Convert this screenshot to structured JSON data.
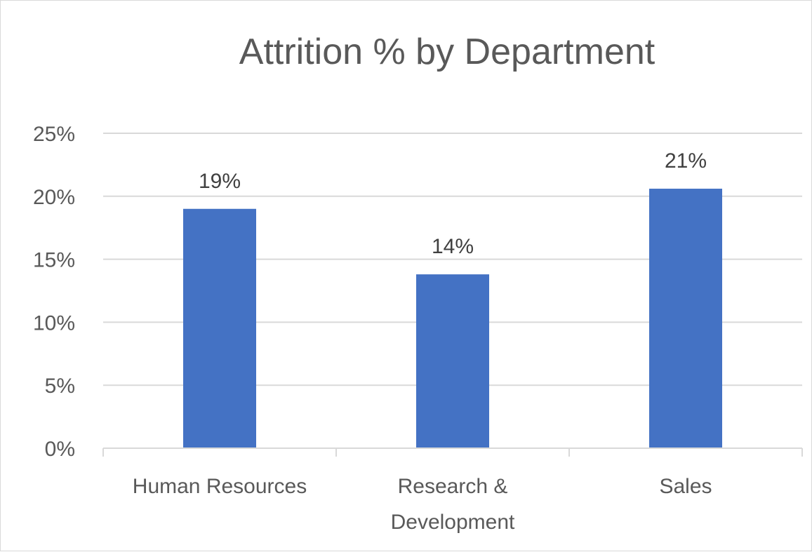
{
  "chart_data": {
    "type": "bar",
    "title": "Attrition % by Department",
    "xlabel": "",
    "ylabel": "",
    "categories": [
      "Human Resources",
      "Research & Development",
      "Sales"
    ],
    "category_lines": [
      [
        "Human Resources"
      ],
      [
        "Research &",
        "Development"
      ],
      [
        "Sales"
      ]
    ],
    "values": [
      0.19,
      0.138,
      0.206
    ],
    "data_labels": [
      "19%",
      "14%",
      "21%"
    ],
    "ylim": [
      0,
      0.25
    ],
    "y_ticks": [
      0,
      0.05,
      0.1,
      0.15,
      0.2,
      0.25
    ],
    "y_tick_labels": [
      "0%",
      "5%",
      "10%",
      "15%",
      "20%",
      "25%"
    ],
    "grid": true,
    "legend": "none",
    "bar_color": "#4472C4",
    "gridline_color": "#d9d9d9"
  }
}
